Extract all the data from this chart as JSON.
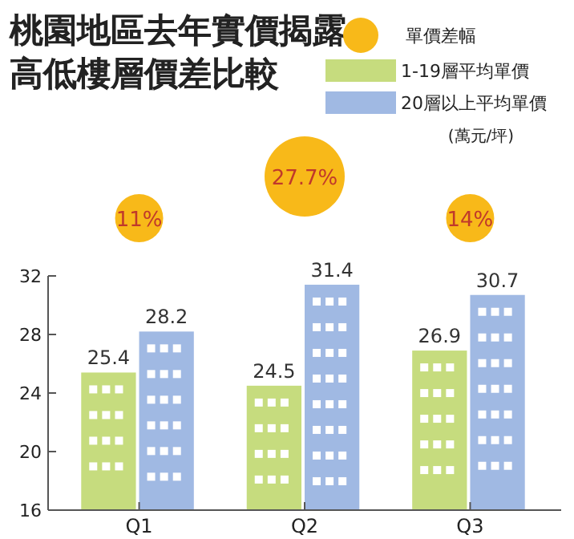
{
  "chart_data": {
    "type": "bar",
    "title": "桃園地區去年實價揭露高低樓層價差比較",
    "categories": [
      "Q1",
      "Q2",
      "Q3"
    ],
    "series": [
      {
        "name": "1-19層平均單價",
        "color": "#c6dc7e",
        "values": [
          25.4,
          24.5,
          26.9
        ]
      },
      {
        "name": "20層以上平均單價",
        "color": "#a0b9e3",
        "values": [
          28.2,
          31.4,
          30.7
        ]
      }
    ],
    "annotations": [
      "單價差幅",
      "(萬元/坪)",
      "11%",
      "27.7%",
      "14%"
    ],
    "ylim": [
      16,
      32
    ],
    "yticks": [
      16,
      20,
      24,
      28,
      32
    ],
    "data_labels": true,
    "legend": "top right"
  }
}
